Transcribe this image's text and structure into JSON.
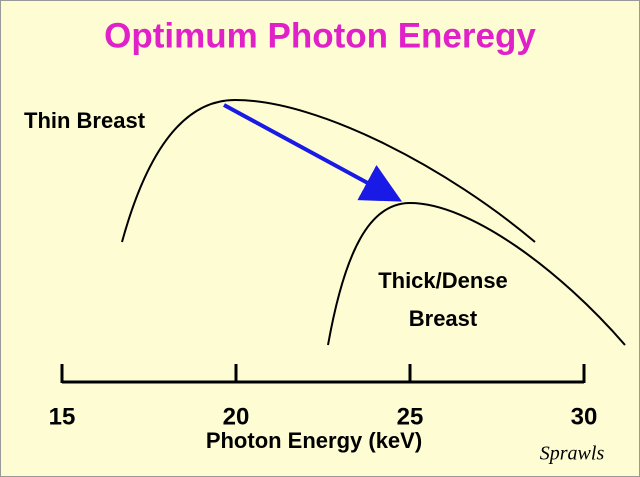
{
  "title": "Optimum Photon Eneregy",
  "labels": {
    "thin": "Thin Breast",
    "thick_line1": "Thick/Dense",
    "thick_line2": "Breast"
  },
  "axis": {
    "label": "Photon Energy (keV)",
    "xlim": [
      15,
      30
    ],
    "xticks": [
      15,
      20,
      25,
      30
    ]
  },
  "signature": "Sprawls"
}
